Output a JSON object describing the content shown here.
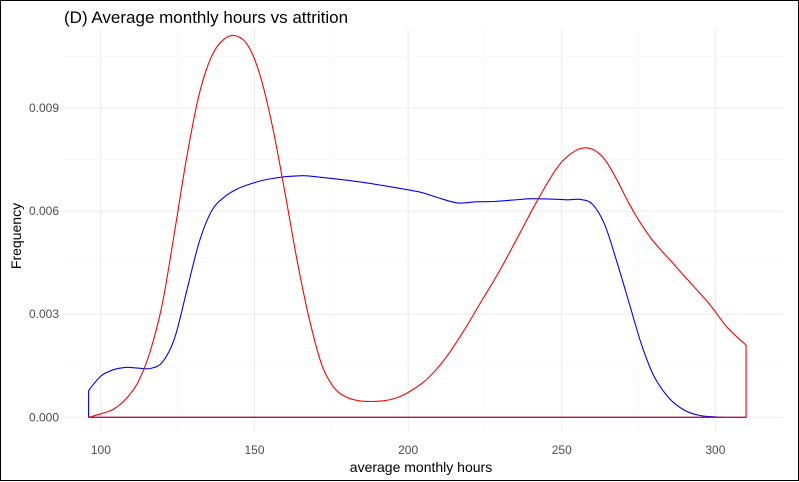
{
  "chart_data": {
    "type": "area",
    "title": "(D) Average monthly hours vs attrition",
    "xlabel": "average monthly hours",
    "ylabel": "Frequency",
    "xlim": [
      88,
      322
    ],
    "ylim": [
      -0.0004,
      0.0113
    ],
    "x_ticks": [
      100,
      150,
      200,
      250,
      300
    ],
    "x_tick_labels": [
      "100",
      "150",
      "200",
      "250",
      "300"
    ],
    "y_ticks": [
      0,
      0.003,
      0.006,
      0.009
    ],
    "y_tick_labels": [
      "0.000",
      "0.003",
      "0.006",
      "0.009"
    ],
    "grid": true,
    "legend": "none",
    "series": [
      {
        "color": "#0000ff",
        "x": [
          96,
          100,
          104,
          108,
          112,
          116,
          120,
          124,
          128,
          132,
          136,
          140,
          144,
          148,
          152,
          156,
          160,
          166,
          172,
          180,
          188,
          196,
          204,
          210,
          216,
          222,
          228,
          234,
          240,
          246,
          252,
          256,
          260,
          264,
          268,
          272,
          276,
          280,
          285,
          290,
          295,
          300,
          305,
          310
        ],
        "y": [
          0.00078,
          0.0012,
          0.00138,
          0.00145,
          0.00143,
          0.00142,
          0.0016,
          0.0023,
          0.0037,
          0.0051,
          0.006,
          0.0064,
          0.00663,
          0.00677,
          0.00688,
          0.00695,
          0.007,
          0.00703,
          0.00698,
          0.0069,
          0.0068,
          0.00668,
          0.00655,
          0.00638,
          0.00624,
          0.00627,
          0.00628,
          0.00632,
          0.00636,
          0.00635,
          0.00633,
          0.00634,
          0.0062,
          0.0056,
          0.0045,
          0.0033,
          0.0021,
          0.0012,
          0.00055,
          0.0002,
          5e-05,
          1e-05,
          0.0,
          0.0
        ]
      },
      {
        "color": "#ff0000",
        "x": [
          96,
          100,
          104,
          108,
          112,
          116,
          120,
          124,
          128,
          132,
          136,
          140,
          144,
          148,
          152,
          156,
          160,
          164,
          168,
          172,
          176,
          180,
          184,
          188,
          192,
          196,
          200,
          206,
          212,
          218,
          224,
          230,
          236,
          242,
          248,
          252,
          256,
          260,
          264,
          268,
          272,
          276,
          280,
          286,
          292,
          298,
          304,
          310
        ],
        "y": [
          0.0,
          0.0001,
          0.00023,
          0.00052,
          0.001,
          0.0019,
          0.0033,
          0.0054,
          0.0076,
          0.0094,
          0.0105,
          0.011,
          0.0111,
          0.0108,
          0.0099,
          0.0084,
          0.0065,
          0.0045,
          0.0028,
          0.0015,
          0.00085,
          0.00058,
          0.00048,
          0.00046,
          0.00048,
          0.00056,
          0.00072,
          0.0011,
          0.0017,
          0.0025,
          0.0034,
          0.0043,
          0.0053,
          0.0063,
          0.0072,
          0.0076,
          0.00782,
          0.0078,
          0.0075,
          0.0069,
          0.0062,
          0.0056,
          0.0051,
          0.0045,
          0.0039,
          0.0033,
          0.0026,
          0.0021
        ]
      }
    ]
  }
}
